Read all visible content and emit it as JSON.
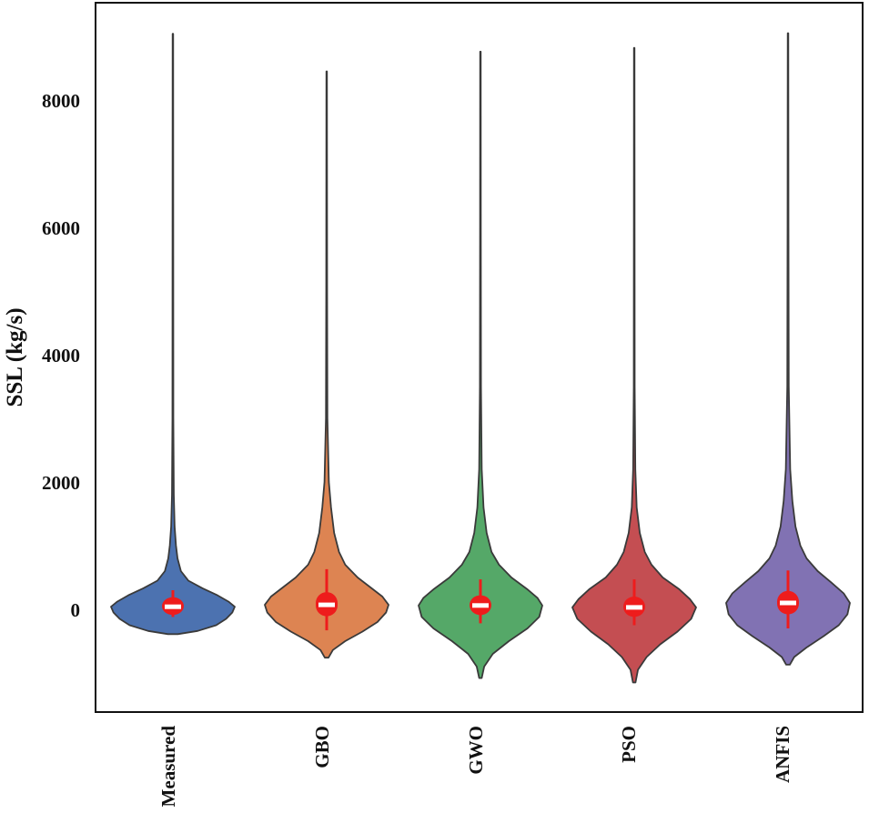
{
  "chart_data": {
    "type": "violin",
    "title": "",
    "xlabel": "",
    "ylabel": "SSL (kg/s)",
    "ylim": [
      -1650,
      9550
    ],
    "yticks": [
      0,
      2000,
      4000,
      6000,
      8000
    ],
    "ytick_labels": [
      "0",
      "2000",
      "4000",
      "6000",
      "8000"
    ],
    "grid": false,
    "categories": [
      "Measured",
      "GBO",
      "GWO",
      "PSO",
      "ANFIS"
    ],
    "series": [
      {
        "name": "Measured",
        "color": "#4c72b0",
        "min": -390,
        "max": 9040,
        "q1": -90,
        "median": 40,
        "q3": 190,
        "whisker_low": -120,
        "whisker_high": 300,
        "profile": [
          [
            -390,
            0.08
          ],
          [
            -340,
            0.4
          ],
          [
            -250,
            0.7
          ],
          [
            -150,
            0.86
          ],
          [
            -50,
            0.96
          ],
          [
            40,
            1.0
          ],
          [
            120,
            0.9
          ],
          [
            220,
            0.72
          ],
          [
            330,
            0.48
          ],
          [
            450,
            0.25
          ],
          [
            600,
            0.13
          ],
          [
            800,
            0.075
          ],
          [
            1000,
            0.05
          ],
          [
            1300,
            0.028
          ],
          [
            1800,
            0.015
          ],
          [
            3000,
            0.008
          ],
          [
            6000,
            0.006
          ],
          [
            9040,
            0.004
          ]
        ]
      },
      {
        "name": "GBO",
        "color": "#dd8452",
        "min": -760,
        "max": 8450,
        "q1": -110,
        "median": 70,
        "q3": 270,
        "whisker_low": -330,
        "whisker_high": 630,
        "profile": [
          [
            -760,
            0.03
          ],
          [
            -640,
            0.1
          ],
          [
            -500,
            0.3
          ],
          [
            -350,
            0.58
          ],
          [
            -200,
            0.82
          ],
          [
            -50,
            0.96
          ],
          [
            70,
            1.0
          ],
          [
            200,
            0.9
          ],
          [
            350,
            0.7
          ],
          [
            500,
            0.5
          ],
          [
            700,
            0.3
          ],
          [
            900,
            0.2
          ],
          [
            1200,
            0.12
          ],
          [
            1600,
            0.07
          ],
          [
            2000,
            0.035
          ],
          [
            3000,
            0.012
          ],
          [
            5000,
            0.007
          ],
          [
            8450,
            0.004
          ]
        ]
      },
      {
        "name": "GWO",
        "color": "#55a868",
        "min": -1080,
        "max": 8760,
        "q1": -90,
        "median": 60,
        "q3": 220,
        "whisker_low": -220,
        "whisker_high": 470,
        "profile": [
          [
            -1080,
            0.02
          ],
          [
            -900,
            0.06
          ],
          [
            -700,
            0.2
          ],
          [
            -500,
            0.46
          ],
          [
            -300,
            0.76
          ],
          [
            -120,
            0.95
          ],
          [
            60,
            1.0
          ],
          [
            180,
            0.92
          ],
          [
            320,
            0.75
          ],
          [
            500,
            0.5
          ],
          [
            700,
            0.3
          ],
          [
            900,
            0.18
          ],
          [
            1200,
            0.1
          ],
          [
            1600,
            0.05
          ],
          [
            2200,
            0.02
          ],
          [
            3500,
            0.009
          ],
          [
            6000,
            0.006
          ],
          [
            8760,
            0.004
          ]
        ]
      },
      {
        "name": "PSO",
        "color": "#c44e52",
        "min": -1150,
        "max": 8820,
        "q1": -120,
        "median": 30,
        "q3": 200,
        "whisker_low": -250,
        "whisker_high": 470,
        "profile": [
          [
            -1150,
            0.02
          ],
          [
            -950,
            0.06
          ],
          [
            -750,
            0.2
          ],
          [
            -550,
            0.42
          ],
          [
            -350,
            0.7
          ],
          [
            -150,
            0.92
          ],
          [
            30,
            1.0
          ],
          [
            160,
            0.9
          ],
          [
            320,
            0.72
          ],
          [
            500,
            0.46
          ],
          [
            700,
            0.28
          ],
          [
            900,
            0.17
          ],
          [
            1200,
            0.09
          ],
          [
            1600,
            0.04
          ],
          [
            2200,
            0.018
          ],
          [
            3500,
            0.008
          ],
          [
            6000,
            0.006
          ],
          [
            8820,
            0.004
          ]
        ]
      },
      {
        "name": "ANFIS",
        "color": "#8172b3",
        "min": -870,
        "max": 9050,
        "q1": -80,
        "median": 100,
        "q3": 290,
        "whisker_low": -300,
        "whisker_high": 610,
        "profile": [
          [
            -870,
            0.03
          ],
          [
            -750,
            0.1
          ],
          [
            -600,
            0.3
          ],
          [
            -420,
            0.58
          ],
          [
            -250,
            0.82
          ],
          [
            -80,
            0.96
          ],
          [
            100,
            1.0
          ],
          [
            250,
            0.9
          ],
          [
            420,
            0.7
          ],
          [
            600,
            0.48
          ],
          [
            800,
            0.3
          ],
          [
            1000,
            0.2
          ],
          [
            1300,
            0.12
          ],
          [
            1700,
            0.07
          ],
          [
            2200,
            0.035
          ],
          [
            3500,
            0.012
          ],
          [
            6000,
            0.007
          ],
          [
            9050,
            0.004
          ]
        ]
      }
    ]
  }
}
